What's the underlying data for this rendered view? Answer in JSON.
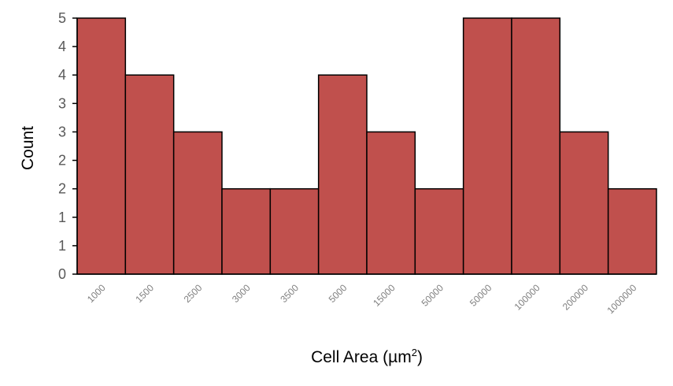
{
  "chart_data": {
    "type": "bar",
    "categories": [
      "1000",
      "1500",
      "2500",
      "3000",
      "3500",
      "5000",
      "15000",
      "50000",
      "50000",
      "100000",
      "200000",
      "1000000"
    ],
    "values": [
      4.5,
      3.5,
      2.5,
      1.5,
      1.5,
      3.5,
      2.5,
      1.5,
      4.5,
      4.5,
      2.5,
      1.5
    ],
    "y_ticks": [
      "0",
      "1",
      "1",
      "2",
      "2",
      "3",
      "3",
      "4",
      "4",
      "5"
    ],
    "ylim": [
      0,
      4.5
    ],
    "ylabel": "Count",
    "xlabel": "Cell Area (µm",
    "xlabel_sup": "2",
    "xlabel_close": ")",
    "grid": false,
    "legend": "none",
    "bar_color": "#c0504d",
    "bar_edge_color": "#000000"
  }
}
